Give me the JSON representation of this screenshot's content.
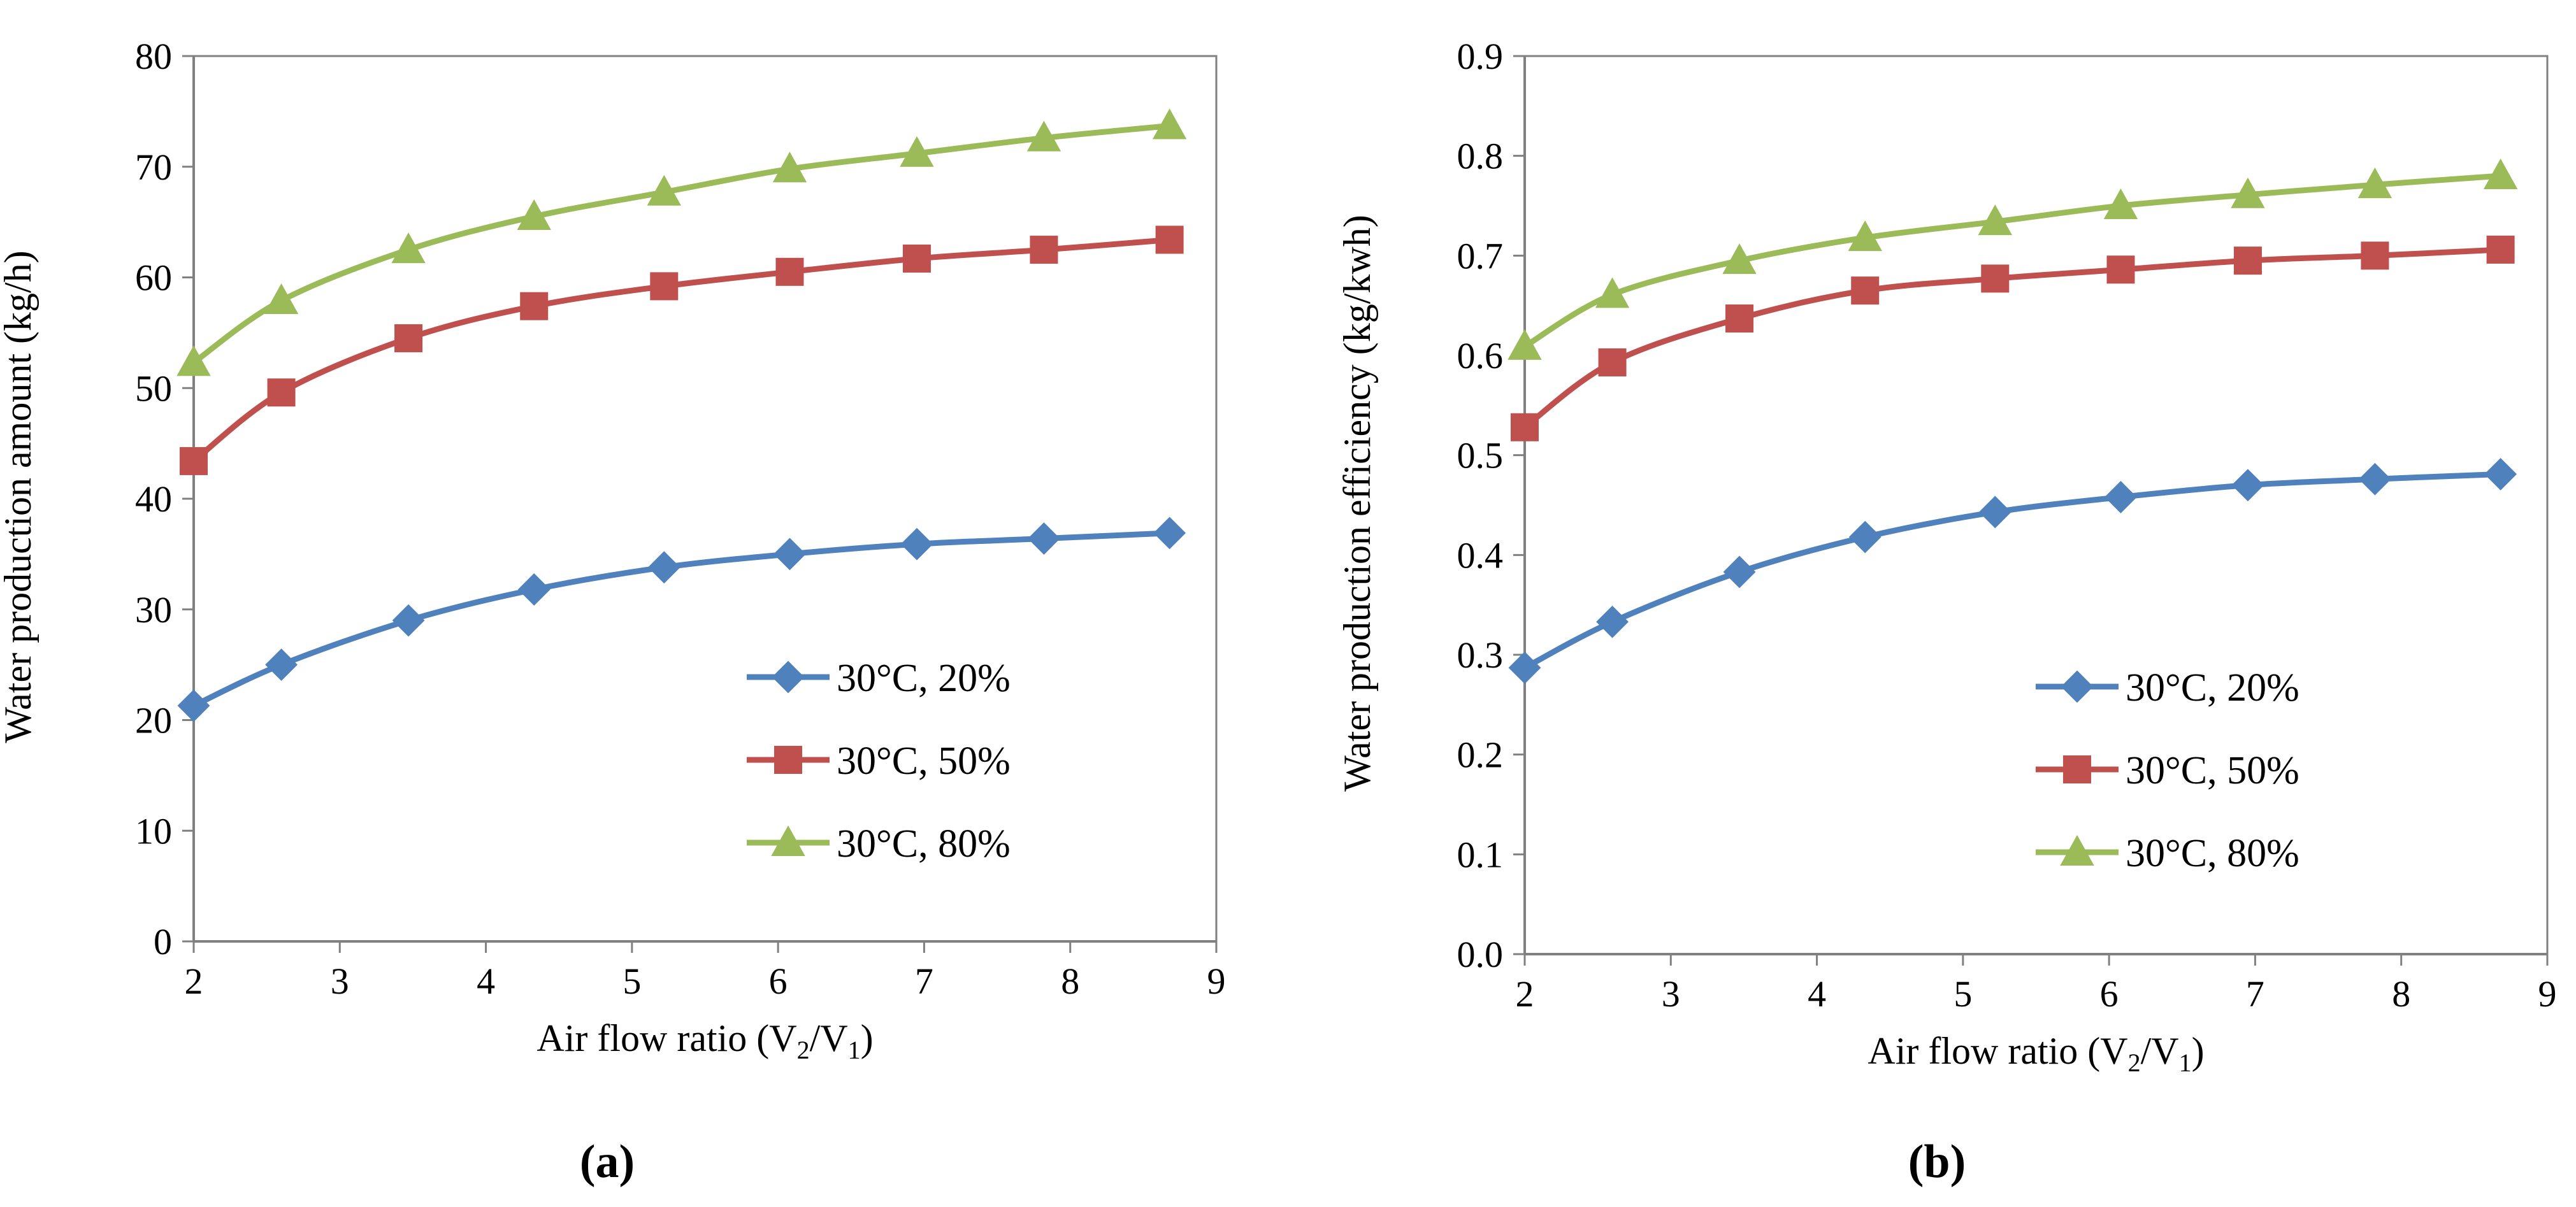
{
  "panels": [
    "(a)",
    "(b)"
  ],
  "chart_data": [
    {
      "type": "line",
      "panel_label": "a",
      "title": "",
      "xlabel_main": "Air flow ratio (V",
      "xlabel_sub1": "2",
      "xlabel_mid": "/V",
      "xlabel_sub2": "1",
      "xlabel_end": ")",
      "ylabel": "Water production amount (kg/h)",
      "xlim": [
        2,
        9
      ],
      "ylim": [
        0,
        80
      ],
      "xticks": [
        "2",
        "3",
        "4",
        "5",
        "6",
        "7",
        "8",
        "9"
      ],
      "yticks": [
        "0",
        "10",
        "20",
        "30",
        "40",
        "50",
        "60",
        "70",
        "80"
      ],
      "x": [
        2.0,
        2.6,
        3.47,
        4.33,
        5.22,
        6.08,
        6.95,
        7.82,
        8.68
      ],
      "legend_position": "center-right",
      "series": [
        {
          "name": "30°C, 20%",
          "color": "#4F81BD",
          "marker": "diamond",
          "values": [
            21.3,
            25.0,
            29.0,
            31.8,
            33.8,
            35.0,
            35.9,
            36.4,
            36.9
          ]
        },
        {
          "name": "30°C, 50%",
          "color": "#C0504D",
          "marker": "square",
          "values": [
            43.4,
            49.6,
            54.5,
            57.4,
            59.2,
            60.5,
            61.7,
            62.5,
            63.4
          ]
        },
        {
          "name": "30°C, 80%",
          "color": "#9BBB59",
          "marker": "triangle",
          "values": [
            52.3,
            57.9,
            62.5,
            65.5,
            67.7,
            69.8,
            71.2,
            72.6,
            73.7
          ]
        }
      ]
    },
    {
      "type": "line",
      "panel_label": "b",
      "title": "",
      "xlabel_main": "Air flow ratio (V",
      "xlabel_sub1": "2",
      "xlabel_mid": "/V",
      "xlabel_sub2": "1",
      "xlabel_end": ")",
      "ylabel": "Water production efficiency  (kg/kwh)",
      "xlim": [
        2,
        9
      ],
      "ylim": [
        0,
        0.9
      ],
      "xticks": [
        "2",
        "3",
        "4",
        "5",
        "6",
        "7",
        "8",
        "9"
      ],
      "yticks": [
        "0.0",
        "0.1",
        "0.2",
        "0.3",
        "0.4",
        "0.5",
        "0.6",
        "0.7",
        "0.8",
        "0.9"
      ],
      "x": [
        2.0,
        2.6,
        3.47,
        4.33,
        5.22,
        6.08,
        6.95,
        7.82,
        8.68
      ],
      "legend_position": "center-right",
      "series": [
        {
          "name": "30°C, 20%",
          "color": "#4F81BD",
          "marker": "diamond",
          "values": [
            0.287,
            0.333,
            0.383,
            0.418,
            0.443,
            0.458,
            0.47,
            0.476,
            0.481
          ]
        },
        {
          "name": "30°C, 50%",
          "color": "#C0504D",
          "marker": "square",
          "values": [
            0.528,
            0.593,
            0.637,
            0.665,
            0.677,
            0.686,
            0.695,
            0.7,
            0.706
          ]
        },
        {
          "name": "30°C, 80%",
          "color": "#9BBB59",
          "marker": "triangle",
          "values": [
            0.609,
            0.661,
            0.695,
            0.718,
            0.734,
            0.75,
            0.761,
            0.771,
            0.78
          ]
        }
      ]
    }
  ]
}
